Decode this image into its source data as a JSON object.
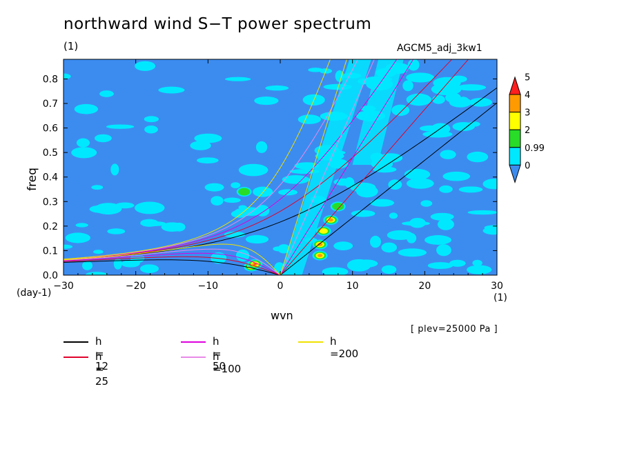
{
  "title": "northward wind S−T power spectrum",
  "subtitle_unit": "(1)",
  "run_name": "AGCM5_adj_3kw1",
  "ylabel": "freq",
  "xlabel": "wvn",
  "y_unit": "(day-1)",
  "x_unit": "(1)",
  "plev_note": "[ plev=25000 Pa ]",
  "chart_data": {
    "type": "heatmap",
    "xlim": [
      -30,
      30
    ],
    "ylim": [
      0,
      0.88
    ],
    "x_ticks": [
      -30,
      -20,
      -10,
      0,
      10,
      20,
      30
    ],
    "x_tick_labels": [
      "−30",
      "−20",
      "−10",
      "0",
      "10",
      "20",
      "30"
    ],
    "y_ticks": [
      0,
      0.1,
      0.2,
      0.3,
      0.4,
      0.5,
      0.6,
      0.7,
      0.8
    ],
    "y_tick_labels": [
      "0.0",
      "0.1",
      "0.2",
      "0.3",
      "0.4",
      "0.5",
      "0.6",
      "0.7",
      "0.8"
    ],
    "colorbar": {
      "levels": [
        0,
        0.99,
        2,
        3,
        4,
        5
      ],
      "labels": [
        "0",
        "0.99",
        "2",
        "3",
        "4",
        "5"
      ],
      "colors": [
        "#3c8cf0",
        "#00e8ff",
        "#28dc28",
        "#ffff00",
        "#ff9b00",
        "#ff1e1e"
      ]
    },
    "highlights": [
      {
        "x": -4,
        "y": 0.035,
        "level": 3
      },
      {
        "x": -3.5,
        "y": 0.045,
        "level": 5
      },
      {
        "x": 5.5,
        "y": 0.08,
        "level": 4
      },
      {
        "x": 5.5,
        "y": 0.125,
        "level": 4
      },
      {
        "x": 6,
        "y": 0.18,
        "level": 3
      },
      {
        "x": 7,
        "y": 0.225,
        "level": 4
      },
      {
        "x": 8,
        "y": 0.28,
        "level": 2
      },
      {
        "x": -5,
        "y": 0.34,
        "level": 2
      }
    ],
    "dispersion_curves": [
      {
        "h": 12,
        "color": "#000000"
      },
      {
        "h": 25,
        "color": "#e0002a"
      },
      {
        "h": 50,
        "color": "#dd00dd"
      },
      {
        "h": 100,
        "color": "#e889e8"
      },
      {
        "h": 200,
        "color": "#f0e000"
      }
    ]
  },
  "legend": [
    {
      "label": "h = 12",
      "color": "#000000"
    },
    {
      "label": "h = 25",
      "color": "#e0002a"
    },
    {
      "label": "h = 50",
      "color": "#dd00dd"
    },
    {
      "label": "h =100",
      "color": "#e889e8"
    },
    {
      "label": "h =200",
      "color": "#f0e000"
    }
  ]
}
